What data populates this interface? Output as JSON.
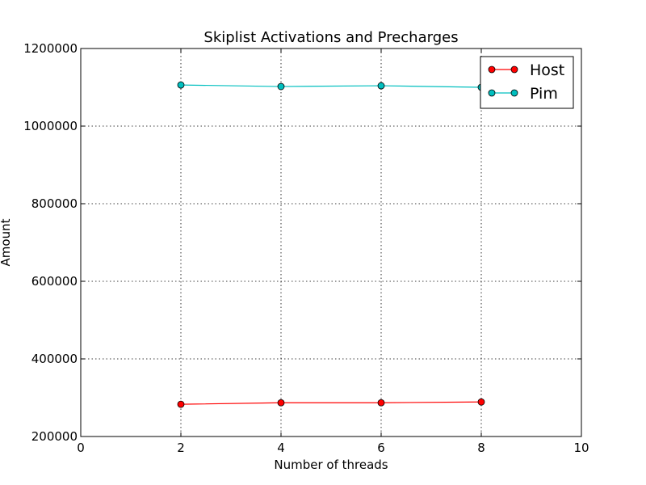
{
  "chart_data": {
    "type": "line",
    "title": "Skiplist Activations and Precharges",
    "xlabel": "Number of threads",
    "ylabel": "Amount",
    "xlim": [
      0,
      10
    ],
    "ylim": [
      200000,
      1200000
    ],
    "xticks": [
      "0",
      "2",
      "4",
      "6",
      "8",
      "10"
    ],
    "yticks": [
      "200000",
      "400000",
      "600000",
      "800000",
      "1000000",
      "1200000"
    ],
    "grid": true,
    "legend_position": "top-right",
    "x": [
      2,
      4,
      6,
      8
    ],
    "series": [
      {
        "name": "Host",
        "color": "#ff0000",
        "values": [
          283000,
          287000,
          287000,
          289000
        ]
      },
      {
        "name": "Pim",
        "color": "#00bfbf",
        "values": [
          1106000,
          1102000,
          1104000,
          1100000
        ]
      }
    ]
  }
}
